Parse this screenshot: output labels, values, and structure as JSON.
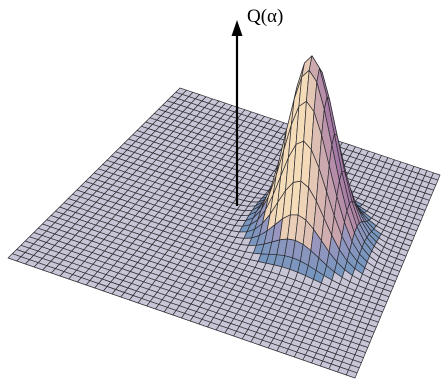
{
  "axis_label": "Q(α)"
}
